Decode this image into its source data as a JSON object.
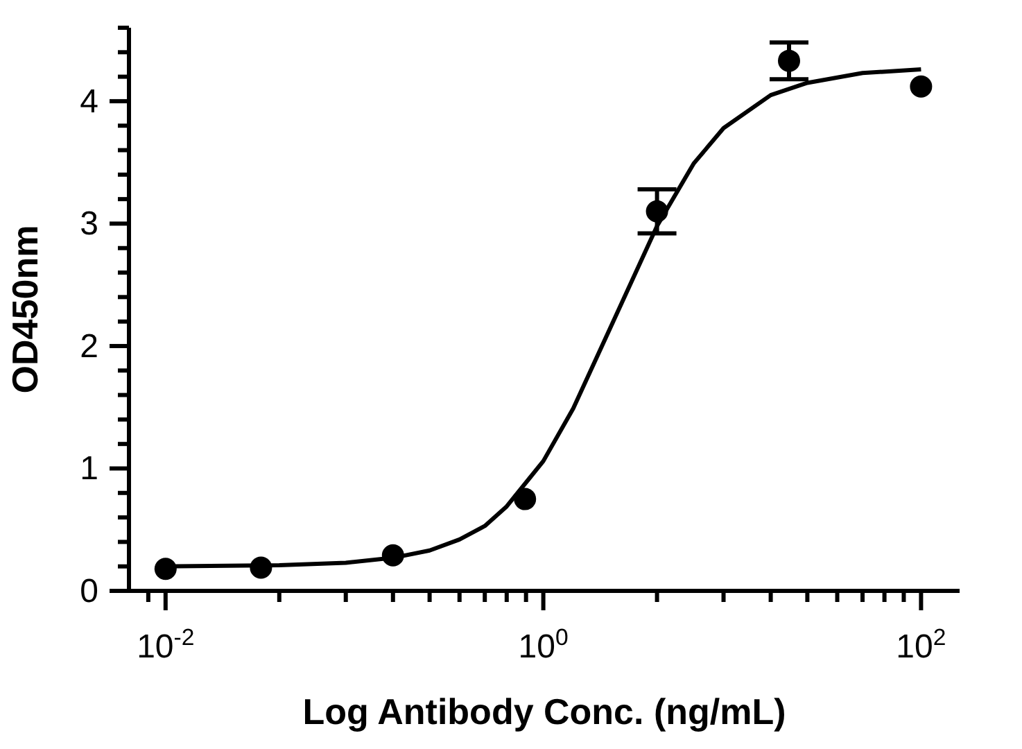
{
  "chart_data": {
    "type": "scatter",
    "xlabel": "Log Antibody Conc. (ng/mL)",
    "ylabel": "OD450nm",
    "log": "x",
    "xlim": [
      0.0064,
      160
    ],
    "ylim": [
      0,
      4.6
    ],
    "xticks": [
      {
        "value": 0.0081,
        "label": null
      },
      {
        "value": 0.01,
        "label": "10$^{-2}$"
      },
      {
        "value": 0.04,
        "label": null
      },
      {
        "value": 0.09,
        "label": null
      },
      {
        "value": 0.16,
        "label": null
      },
      {
        "value": 0.25,
        "label": null
      },
      {
        "value": 0.36,
        "label": null
      },
      {
        "value": 0.49,
        "label": null
      },
      {
        "value": 0.64,
        "label": null
      },
      {
        "value": 0.81,
        "label": null
      },
      {
        "value": 1,
        "label": "10$^{0}$"
      },
      {
        "value": 4,
        "label": null
      },
      {
        "value": 9,
        "label": null
      },
      {
        "value": 16,
        "label": null
      },
      {
        "value": 25,
        "label": null
      },
      {
        "value": 36,
        "label": null
      },
      {
        "value": 49,
        "label": null
      },
      {
        "value": 64,
        "label": null
      },
      {
        "value": 81,
        "label": null
      },
      {
        "value": 100,
        "label": "10$^{2}$"
      }
    ],
    "yticks": [
      0,
      {
        "value": 0.2,
        "label": null
      },
      {
        "value": 0.4,
        "label": null
      },
      {
        "value": 0.6,
        "label": null
      },
      {
        "value": 0.8,
        "label": null
      },
      1,
      {
        "value": 1.2,
        "label": null
      },
      {
        "value": 1.4,
        "label": null
      },
      {
        "value": 1.6,
        "label": null
      },
      {
        "value": 1.8,
        "label": null
      },
      2,
      {
        "value": 2.2,
        "label": null
      },
      {
        "value": 2.4,
        "label": null
      },
      {
        "value": 2.6,
        "label": null
      },
      {
        "value": 2.8,
        "label": null
      },
      3,
      {
        "value": 3.2,
        "label": null
      },
      {
        "value": 3.4,
        "label": null
      },
      {
        "value": 3.6,
        "label": null
      },
      {
        "value": 3.8,
        "label": null
      },
      4,
      {
        "value": 4.2,
        "label": null
      },
      {
        "value": 4.4,
        "label": null
      },
      {
        "value": 4.6,
        "label": null
      }
    ],
    "series": [
      {
        "marker": "circle",
        "color": "#000000",
        "x": [
          0.01,
          0.032,
          0.16,
          0.8,
          4,
          20,
          100
        ],
        "values": [
          0.18,
          0.19,
          0.29,
          0.75,
          3.1,
          4.33,
          4.12
        ],
        "errors": [
          null,
          null,
          null,
          null,
          0.18,
          0.15,
          null
        ]
      },
      {
        "type": "line",
        "marker": "none",
        "color": "#000000",
        "x": [
          0.01,
          0.04,
          0.09,
          0.16,
          0.25,
          0.36,
          0.49,
          0.64,
          1,
          1.44,
          2.25,
          4,
          6.25,
          9,
          16,
          25,
          49,
          100
        ],
        "values": [
          0.2,
          0.21,
          0.23,
          0.27,
          0.33,
          0.42,
          0.53,
          0.69,
          1.06,
          1.49,
          2.14,
          2.98,
          3.49,
          3.78,
          4.05,
          4.15,
          4.23,
          4.26
        ]
      }
    ]
  }
}
